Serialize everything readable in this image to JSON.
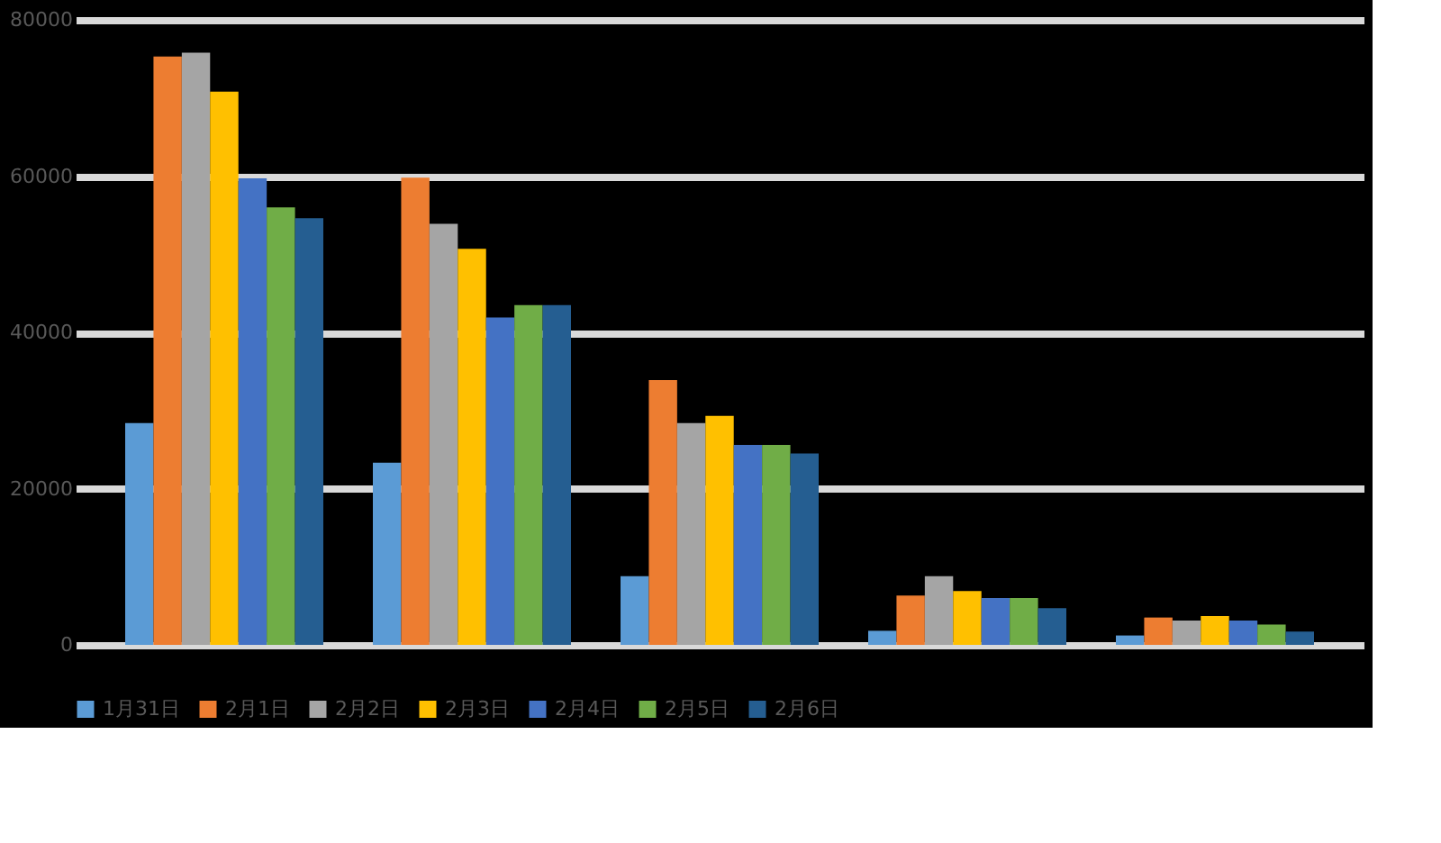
{
  "chart_data": {
    "type": "bar",
    "categories": [
      null,
      null,
      null,
      null,
      null
    ],
    "series": [
      {
        "name": "1月31日",
        "color": "#5b9bd5",
        "values": [
          28400,
          23300,
          8800,
          1800,
          1200
        ]
      },
      {
        "name": "2月1日",
        "color": "#ed7d31",
        "values": [
          75300,
          59800,
          33900,
          6300,
          3500
        ]
      },
      {
        "name": "2月2日",
        "color": "#a5a5a5",
        "values": [
          75800,
          53900,
          28400,
          8800,
          3100
        ]
      },
      {
        "name": "2月3日",
        "color": "#ffc000",
        "values": [
          70800,
          50700,
          29300,
          6900,
          3700
        ]
      },
      {
        "name": "2月4日",
        "color": "#4472c4",
        "values": [
          59700,
          41900,
          25600,
          6000,
          3100
        ]
      },
      {
        "name": "2月5日",
        "color": "#70ad47",
        "values": [
          56000,
          43500,
          25600,
          6000,
          2600
        ]
      },
      {
        "name": "2月6日",
        "color": "#255e91",
        "values": [
          54600,
          43500,
          24500,
          4700,
          1700
        ]
      }
    ],
    "ylim": [
      0,
      80000
    ],
    "yticks": [
      0,
      20000,
      40000,
      60000,
      80000
    ],
    "grid": "y",
    "legend": "bottom"
  }
}
